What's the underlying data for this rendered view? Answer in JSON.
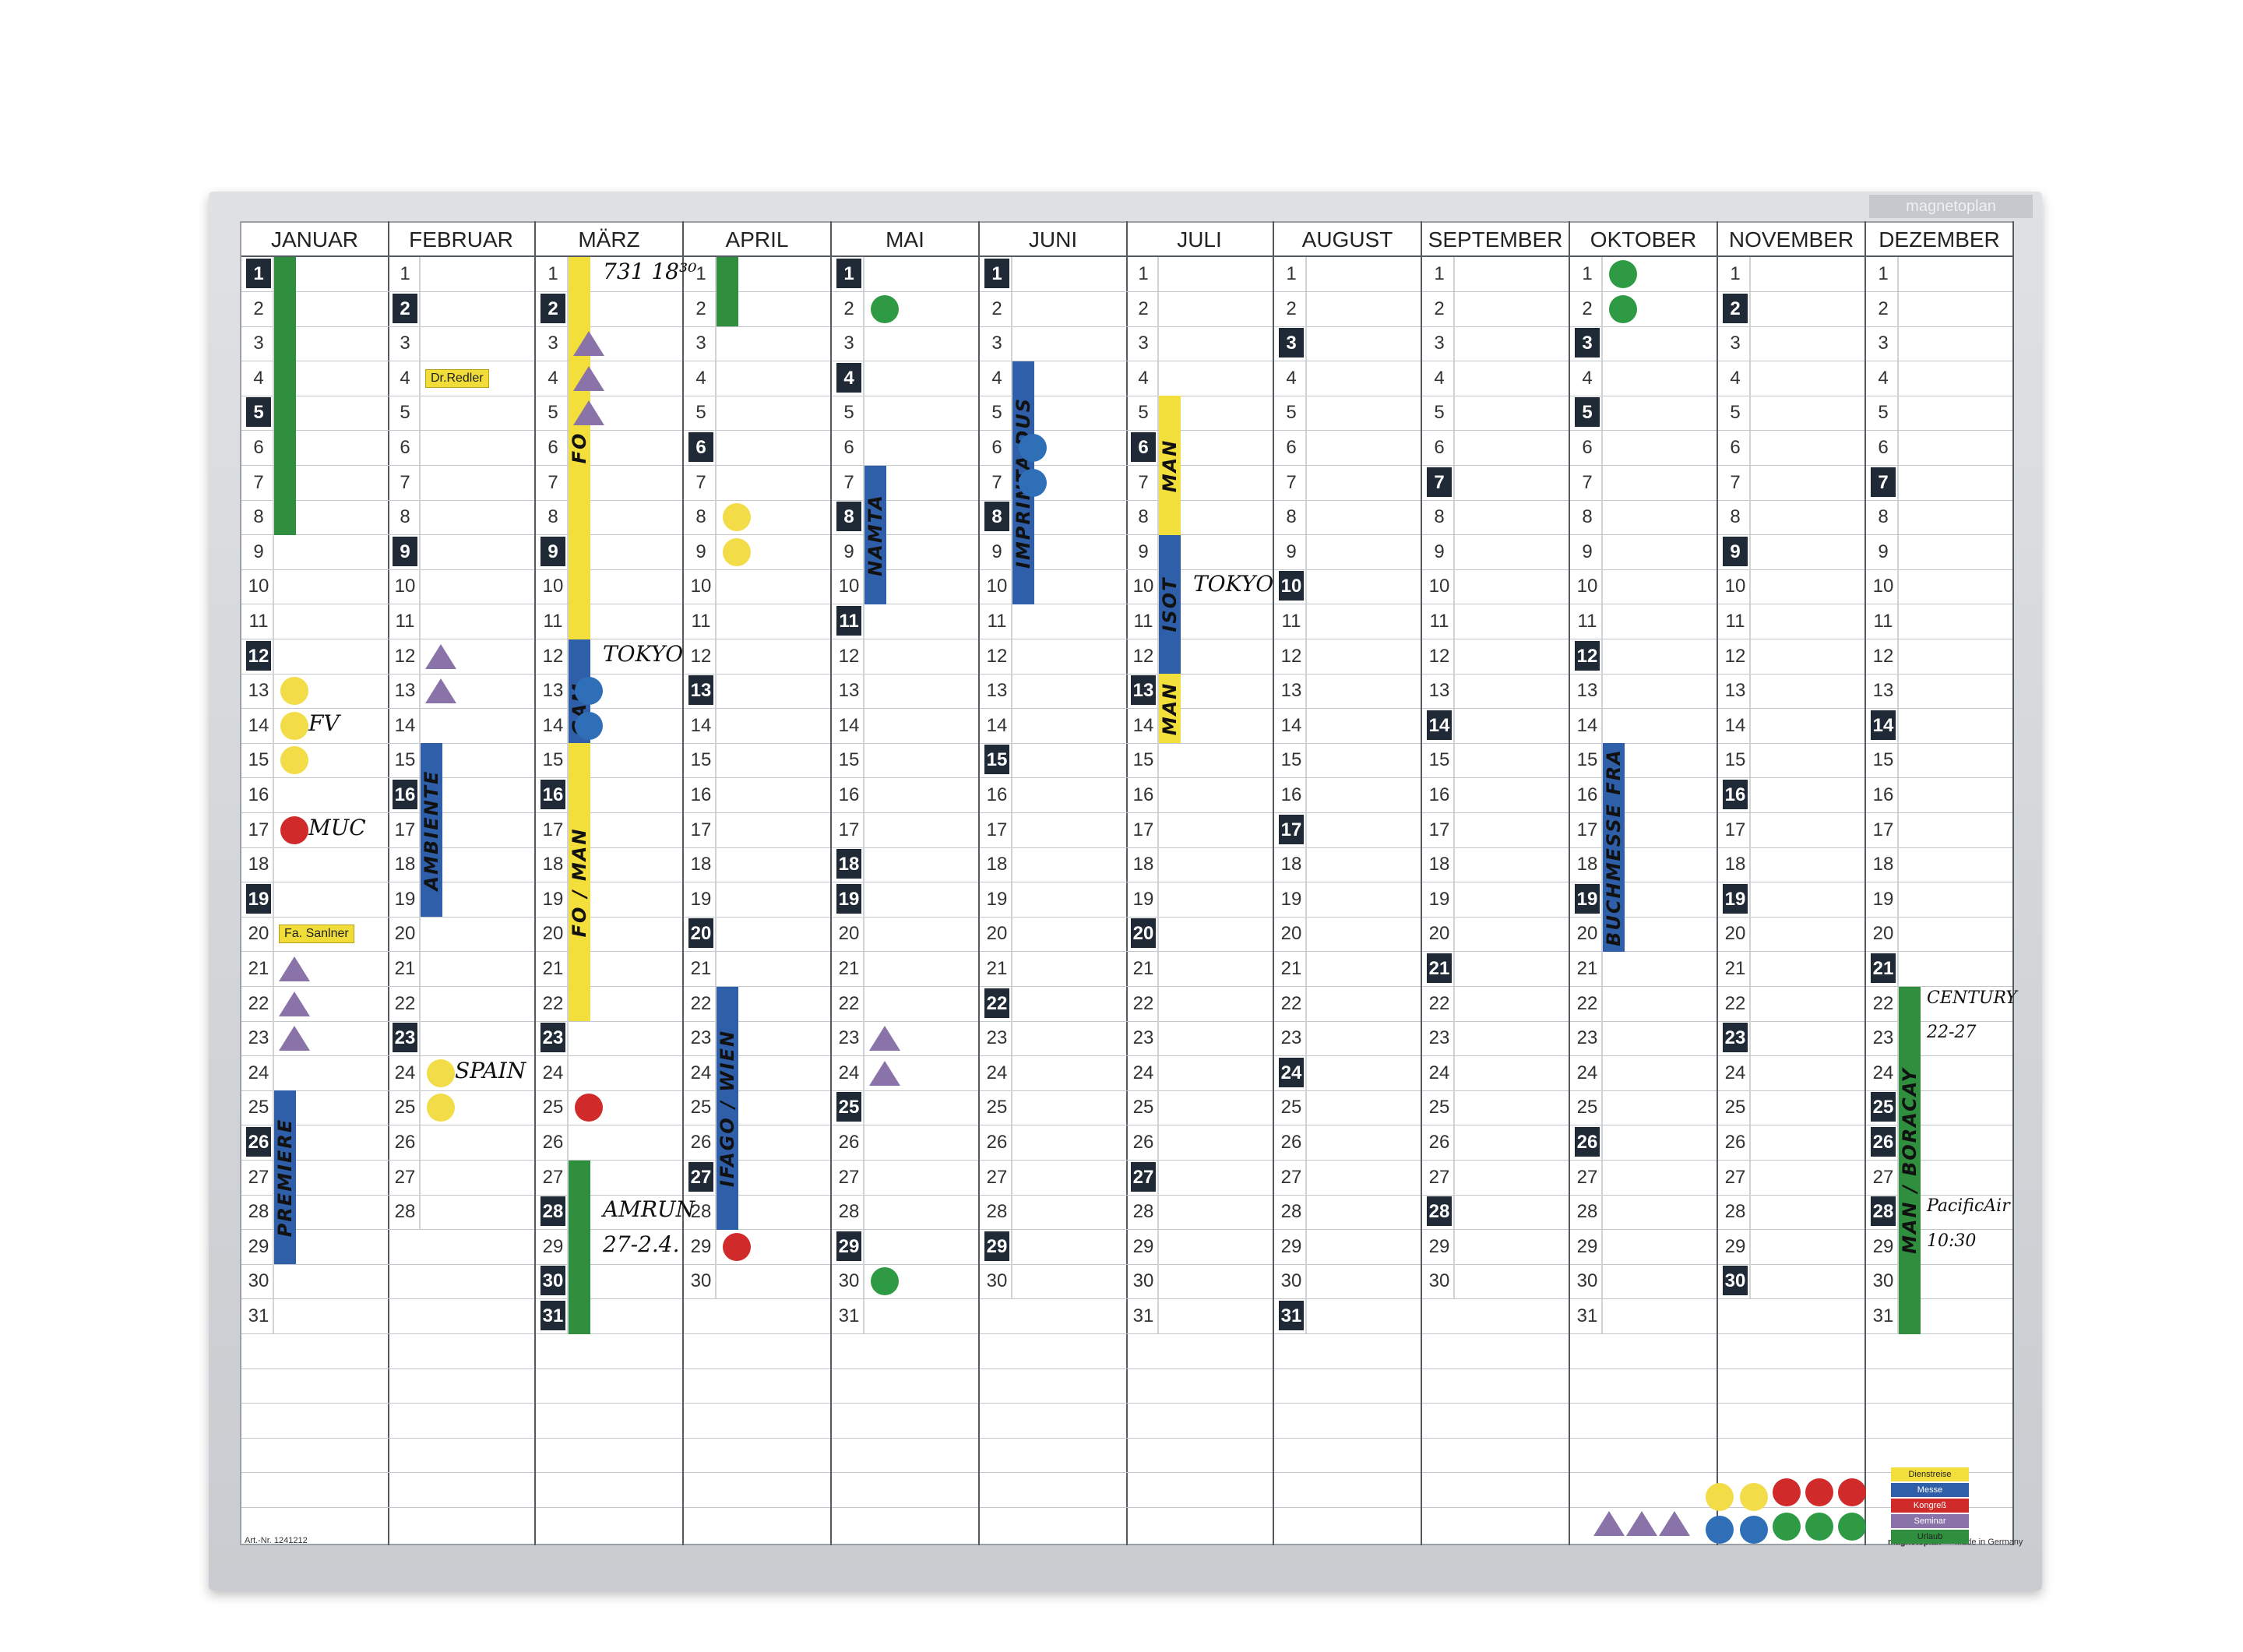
{
  "board": {
    "brand": "magnetoplan",
    "article": "Art.-Nr. 1241212",
    "footer_brand": "magnetoplan",
    "made_in": "Made in Germany"
  },
  "months": [
    {
      "name": "JANUAR",
      "days": 31,
      "weekmarks": [
        1,
        5,
        12,
        19,
        26
      ]
    },
    {
      "name": "FEBRUAR",
      "days": 28,
      "weekmarks": [
        2,
        9,
        16,
        23
      ]
    },
    {
      "name": "MÄRZ",
      "days": 31,
      "weekmarks": [
        2,
        9,
        16,
        23,
        28,
        30,
        31
      ]
    },
    {
      "name": "APRIL",
      "days": 30,
      "weekmarks": [
        6,
        13,
        20,
        27
      ]
    },
    {
      "name": "MAI",
      "days": 31,
      "weekmarks": [
        1,
        4,
        8,
        11,
        18,
        19,
        25,
        29
      ]
    },
    {
      "name": "JUNI",
      "days": 30,
      "weekmarks": [
        1,
        8,
        15,
        22,
        29
      ]
    },
    {
      "name": "JULI",
      "days": 31,
      "weekmarks": [
        6,
        13,
        20,
        27
      ]
    },
    {
      "name": "AUGUST",
      "days": 31,
      "weekmarks": [
        3,
        10,
        17,
        24,
        31
      ]
    },
    {
      "name": "SEPTEMBER",
      "days": 30,
      "weekmarks": [
        7,
        14,
        21,
        28
      ]
    },
    {
      "name": "OKTOBER",
      "days": 31,
      "weekmarks": [
        3,
        5,
        12,
        19,
        26
      ]
    },
    {
      "name": "NOVEMBER",
      "days": 30,
      "weekmarks": [
        2,
        9,
        16,
        19,
        23,
        30
      ]
    },
    {
      "name": "DEZEMBER",
      "days": 31,
      "weekmarks": [
        7,
        14,
        21,
        25,
        26,
        28
      ]
    }
  ],
  "bars": [
    {
      "month": 0,
      "from": 1,
      "to": 8,
      "color": "#2f8f3f",
      "label": ""
    },
    {
      "month": 0,
      "from": 25,
      "to": 29,
      "color": "#2f5fa8",
      "label": "PREMIERE"
    },
    {
      "month": 1,
      "from": 15,
      "to": 19,
      "color": "#2f5fa8",
      "label": "AMBIENTE"
    },
    {
      "month": 2,
      "from": 1,
      "to": 11,
      "color": "#f3df3c",
      "label": "FO"
    },
    {
      "month": 2,
      "from": 12,
      "to": 15,
      "color": "#2f5fa8",
      "label": "GAM"
    },
    {
      "month": 2,
      "from": 15,
      "to": 22,
      "color": "#f3df3c",
      "label": "FO / MAN"
    },
    {
      "month": 2,
      "from": 27,
      "to": 31,
      "color": "#2f8f3f",
      "label": ""
    },
    {
      "month": 3,
      "from": 1,
      "to": 2,
      "color": "#2f8f3f",
      "label": ""
    },
    {
      "month": 3,
      "from": 22,
      "to": 28,
      "color": "#2f5fa8",
      "label": "IFAGO / WIEN"
    },
    {
      "month": 4,
      "from": 7,
      "to": 10,
      "color": "#2f5fa8",
      "label": "NAMTA"
    },
    {
      "month": 5,
      "from": 4,
      "to": 10,
      "color": "#2f5fa8",
      "label": "IMPRINTA DUS"
    },
    {
      "month": 6,
      "from": 5,
      "to": 8,
      "color": "#f3df3c",
      "label": "MAN"
    },
    {
      "month": 6,
      "from": 9,
      "to": 12,
      "color": "#2f5fa8",
      "label": "ISOT"
    },
    {
      "month": 6,
      "from": 13,
      "to": 14,
      "color": "#f3df3c",
      "label": "MAN"
    },
    {
      "month": 9,
      "from": 15,
      "to": 20,
      "color": "#2f5fa8",
      "label": "BUCHMESSE FRA"
    },
    {
      "month": 11,
      "from": 22,
      "to": 31,
      "color": "#2f8f3f",
      "label": "MAN / BORACAY"
    }
  ],
  "dots": [
    {
      "month": 0,
      "day": 13,
      "color": "#f2dc48"
    },
    {
      "month": 0,
      "day": 14,
      "color": "#f2dc48"
    },
    {
      "month": 0,
      "day": 15,
      "color": "#f2dc48"
    },
    {
      "month": 0,
      "day": 17,
      "color": "#d02a2a"
    },
    {
      "month": 1,
      "day": 24,
      "color": "#f2dc48"
    },
    {
      "month": 1,
      "day": 25,
      "color": "#f2dc48"
    },
    {
      "month": 2,
      "day": 13,
      "color": "#2f6fb8"
    },
    {
      "month": 2,
      "day": 14,
      "color": "#2f6fb8"
    },
    {
      "month": 2,
      "day": 25,
      "color": "#d02a2a"
    },
    {
      "month": 3,
      "day": 8,
      "color": "#f2dc48"
    },
    {
      "month": 3,
      "day": 9,
      "color": "#f2dc48"
    },
    {
      "month": 3,
      "day": 29,
      "color": "#d02a2a"
    },
    {
      "month": 4,
      "day": 2,
      "color": "#2f9a44"
    },
    {
      "month": 4,
      "day": 30,
      "color": "#2f9a44"
    },
    {
      "month": 5,
      "day": 6,
      "color": "#2f6fb8"
    },
    {
      "month": 5,
      "day": 7,
      "color": "#2f6fb8"
    },
    {
      "month": 9,
      "day": 1,
      "color": "#2f9a44"
    },
    {
      "month": 9,
      "day": 2,
      "color": "#2f9a44"
    }
  ],
  "triangles": [
    {
      "month": 0,
      "day": 21
    },
    {
      "month": 0,
      "day": 22
    },
    {
      "month": 0,
      "day": 23
    },
    {
      "month": 1,
      "day": 12
    },
    {
      "month": 1,
      "day": 13
    },
    {
      "month": 2,
      "day": 3
    },
    {
      "month": 2,
      "day": 4
    },
    {
      "month": 2,
      "day": 5
    },
    {
      "month": 4,
      "day": 23
    },
    {
      "month": 4,
      "day": 24
    }
  ],
  "notes": [
    {
      "text": "731 18³⁰",
      "month": 2,
      "day": 1
    },
    {
      "text": "TOKYO",
      "month": 2,
      "day": 12
    },
    {
      "text": "FV",
      "month": 0,
      "day": 14
    },
    {
      "text": "MUC",
      "month": 0,
      "day": 17
    },
    {
      "text": "SPAIN",
      "month": 1,
      "day": 24
    },
    {
      "text": "AMRUN",
      "month": 2,
      "day": 28
    },
    {
      "text": "27-2.4.",
      "month": 2,
      "day": 29
    },
    {
      "text": "TOKYO",
      "month": 6,
      "day": 10
    },
    {
      "text": "CENTURY",
      "month": 11,
      "day": 22
    },
    {
      "text": "22-27",
      "month": 11,
      "day": 23
    },
    {
      "text": "PacificAir",
      "month": 11,
      "day": 28
    },
    {
      "text": "10:30",
      "month": 11,
      "day": 29
    }
  ],
  "labels": [
    {
      "text": "Dr.Redler",
      "month": 1,
      "day": 4
    },
    {
      "text": "Fa. Sanlner",
      "month": 0,
      "day": 20
    }
  ],
  "legend": [
    {
      "text": "Dienstreise",
      "color": "#f3df3c"
    },
    {
      "text": "Messe",
      "color": "#2f5fa8"
    },
    {
      "text": "Kongreß",
      "color": "#d02a2a"
    },
    {
      "text": "Seminar",
      "color": "#8a73a8"
    },
    {
      "text": "Urlaub",
      "color": "#2f8f3f"
    }
  ]
}
